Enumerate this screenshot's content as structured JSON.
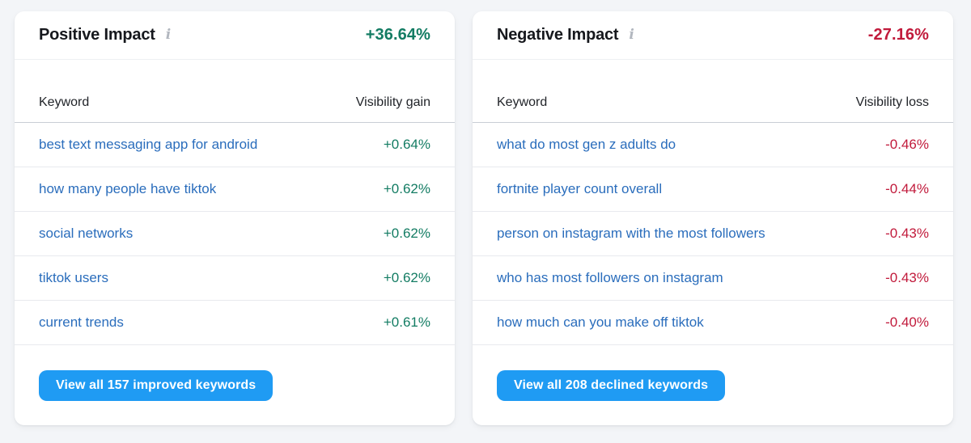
{
  "colors": {
    "positive_green": "#137c63",
    "negative_red": "#c11a3b",
    "keyword_link_blue": "#2a6dbc",
    "button_blue": "#1f9bf3"
  },
  "cards": [
    {
      "id": "positive-impact",
      "title": "Positive Impact",
      "info_icon": "i",
      "total": "+36.64%",
      "total_color": "#137c63",
      "columns": [
        "Keyword",
        "Visibility gain"
      ],
      "rows": [
        {
          "keyword": "best text messaging app for android",
          "value": "+0.64%"
        },
        {
          "keyword": "how many people have tiktok",
          "value": "+0.62%"
        },
        {
          "keyword": "social networks",
          "value": "+0.62%"
        },
        {
          "keyword": "tiktok users",
          "value": "+0.62%"
        },
        {
          "keyword": "current trends",
          "value": "+0.61%"
        }
      ],
      "button_label": "View all 157 improved keywords"
    },
    {
      "id": "negative-impact",
      "title": "Negative Impact",
      "info_icon": "i",
      "total": "-27.16%",
      "total_color": "#c11a3b",
      "columns": [
        "Keyword",
        "Visibility loss"
      ],
      "rows": [
        {
          "keyword": "what do most gen z adults do",
          "value": "-0.46%"
        },
        {
          "keyword": "fortnite player count overall",
          "value": "-0.44%"
        },
        {
          "keyword": "person on instagram with the most followers",
          "value": "-0.43%"
        },
        {
          "keyword": "who has most followers on instagram",
          "value": "-0.43%"
        },
        {
          "keyword": "how much can you make off tiktok",
          "value": "-0.40%"
        }
      ],
      "button_label": "View all 208 declined keywords"
    }
  ]
}
